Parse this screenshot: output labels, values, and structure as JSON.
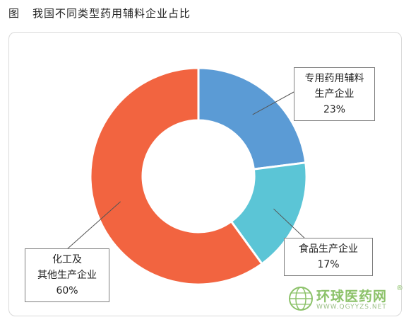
{
  "header": {
    "figure_label": "图",
    "title": "我国不同类型药用辅料企业占比"
  },
  "chart_data": {
    "type": "pie",
    "donut": true,
    "categories": [
      "专用药用辅料生产企业",
      "食品生产企业",
      "化工及其他生产企业"
    ],
    "values": [
      23,
      17,
      60
    ],
    "unit": "%",
    "colors": [
      "#5b9bd5",
      "#5bc5d6",
      "#f26440"
    ],
    "legend": "none",
    "labels": [
      {
        "line1": "专用药用辅料",
        "line2": "生产企业",
        "pct": "23%"
      },
      {
        "line1": "食品生产企业",
        "line2": "",
        "pct": "17%"
      },
      {
        "line1": "化工及",
        "line2": "其他生产企业",
        "pct": "60%"
      }
    ]
  },
  "watermark": {
    "name": "环球医药网",
    "url": "WWW.QGYYZS.NET",
    "registered_mark": "®",
    "icon": "globe-logo-icon"
  }
}
